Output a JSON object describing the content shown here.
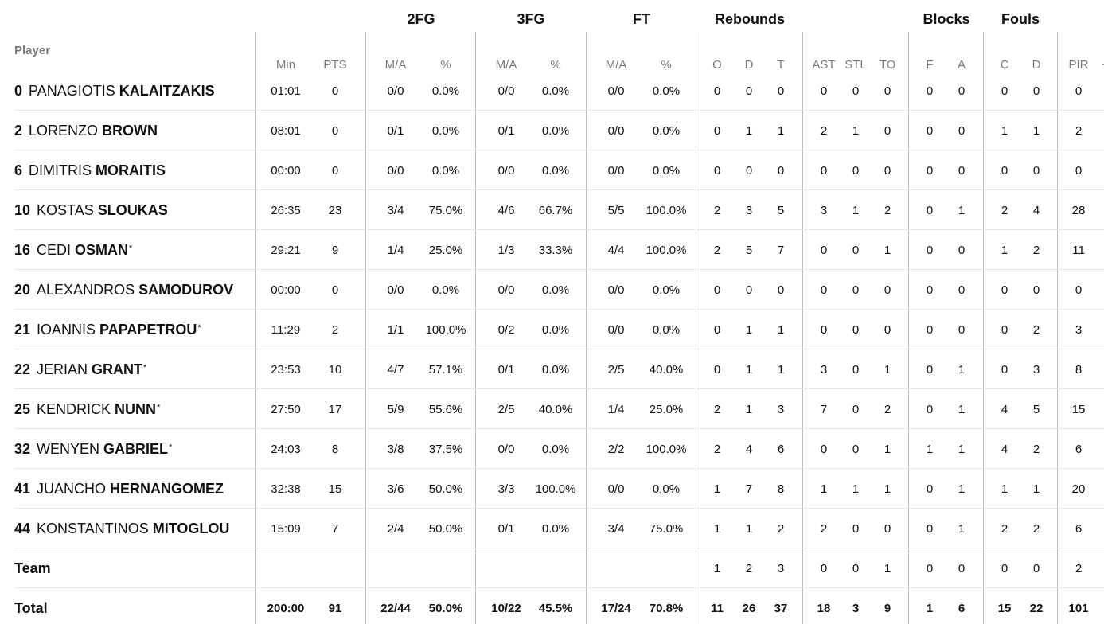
{
  "groups": {
    "fg2": "2FG",
    "fg3": "3FG",
    "ft": "FT",
    "rebounds": "Rebounds",
    "blocks": "Blocks",
    "fouls": "Fouls"
  },
  "columns": {
    "player": "Player",
    "min": "Min",
    "pts": "PTS",
    "fg2_ma": "M/A",
    "fg2_pct": "%",
    "fg3_ma": "M/A",
    "fg3_pct": "%",
    "ft_ma": "M/A",
    "ft_pct": "%",
    "reb_o": "O",
    "reb_d": "D",
    "reb_t": "T",
    "ast": "AST",
    "stl": "STL",
    "to": "TO",
    "blk_f": "F",
    "blk_a": "A",
    "foul_c": "C",
    "foul_d": "D",
    "pir": "PIR"
  },
  "players": [
    {
      "num": "0",
      "first": "PANAGIOTIS",
      "last": "KALAITZAKIS",
      "starter": "",
      "min": "01:01",
      "pts": "0",
      "fg2_ma": "0/0",
      "fg2_pct": "0.0%",
      "fg3_ma": "0/0",
      "fg3_pct": "0.0%",
      "ft_ma": "0/0",
      "ft_pct": "0.0%",
      "reb_o": "0",
      "reb_d": "0",
      "reb_t": "0",
      "ast": "0",
      "stl": "0",
      "to": "0",
      "blk_f": "0",
      "blk_a": "0",
      "foul_c": "0",
      "foul_d": "0",
      "pir": "0"
    },
    {
      "num": "2",
      "first": "LORENZO",
      "last": "BROWN",
      "starter": "",
      "min": "08:01",
      "pts": "0",
      "fg2_ma": "0/1",
      "fg2_pct": "0.0%",
      "fg3_ma": "0/1",
      "fg3_pct": "0.0%",
      "ft_ma": "0/0",
      "ft_pct": "0.0%",
      "reb_o": "0",
      "reb_d": "1",
      "reb_t": "1",
      "ast": "2",
      "stl": "1",
      "to": "0",
      "blk_f": "0",
      "blk_a": "0",
      "foul_c": "1",
      "foul_d": "1",
      "pir": "2"
    },
    {
      "num": "6",
      "first": "DIMITRIS",
      "last": "MORAITIS",
      "starter": "",
      "min": "00:00",
      "pts": "0",
      "fg2_ma": "0/0",
      "fg2_pct": "0.0%",
      "fg3_ma": "0/0",
      "fg3_pct": "0.0%",
      "ft_ma": "0/0",
      "ft_pct": "0.0%",
      "reb_o": "0",
      "reb_d": "0",
      "reb_t": "0",
      "ast": "0",
      "stl": "0",
      "to": "0",
      "blk_f": "0",
      "blk_a": "0",
      "foul_c": "0",
      "foul_d": "0",
      "pir": "0"
    },
    {
      "num": "10",
      "first": "KOSTAS",
      "last": "SLOUKAS",
      "starter": "",
      "min": "26:35",
      "pts": "23",
      "fg2_ma": "3/4",
      "fg2_pct": "75.0%",
      "fg3_ma": "4/6",
      "fg3_pct": "66.7%",
      "ft_ma": "5/5",
      "ft_pct": "100.0%",
      "reb_o": "2",
      "reb_d": "3",
      "reb_t": "5",
      "ast": "3",
      "stl": "1",
      "to": "2",
      "blk_f": "0",
      "blk_a": "1",
      "foul_c": "2",
      "foul_d": "4",
      "pir": "28"
    },
    {
      "num": "16",
      "first": "CEDI",
      "last": "OSMAN",
      "starter": "*",
      "min": "29:21",
      "pts": "9",
      "fg2_ma": "1/4",
      "fg2_pct": "25.0%",
      "fg3_ma": "1/3",
      "fg3_pct": "33.3%",
      "ft_ma": "4/4",
      "ft_pct": "100.0%",
      "reb_o": "2",
      "reb_d": "5",
      "reb_t": "7",
      "ast": "0",
      "stl": "0",
      "to": "1",
      "blk_f": "0",
      "blk_a": "0",
      "foul_c": "1",
      "foul_d": "2",
      "pir": "11"
    },
    {
      "num": "20",
      "first": "ALEXANDROS",
      "last": "SAMODUROV",
      "starter": "",
      "min": "00:00",
      "pts": "0",
      "fg2_ma": "0/0",
      "fg2_pct": "0.0%",
      "fg3_ma": "0/0",
      "fg3_pct": "0.0%",
      "ft_ma": "0/0",
      "ft_pct": "0.0%",
      "reb_o": "0",
      "reb_d": "0",
      "reb_t": "0",
      "ast": "0",
      "stl": "0",
      "to": "0",
      "blk_f": "0",
      "blk_a": "0",
      "foul_c": "0",
      "foul_d": "0",
      "pir": "0"
    },
    {
      "num": "21",
      "first": "IOANNIS",
      "last": "PAPAPETROU",
      "starter": "*",
      "min": "11:29",
      "pts": "2",
      "fg2_ma": "1/1",
      "fg2_pct": "100.0%",
      "fg3_ma": "0/2",
      "fg3_pct": "0.0%",
      "ft_ma": "0/0",
      "ft_pct": "0.0%",
      "reb_o": "0",
      "reb_d": "1",
      "reb_t": "1",
      "ast": "0",
      "stl": "0",
      "to": "0",
      "blk_f": "0",
      "blk_a": "0",
      "foul_c": "0",
      "foul_d": "2",
      "pir": "3"
    },
    {
      "num": "22",
      "first": "JERIAN",
      "last": "GRANT",
      "starter": "*",
      "min": "23:53",
      "pts": "10",
      "fg2_ma": "4/7",
      "fg2_pct": "57.1%",
      "fg3_ma": "0/1",
      "fg3_pct": "0.0%",
      "ft_ma": "2/5",
      "ft_pct": "40.0%",
      "reb_o": "0",
      "reb_d": "1",
      "reb_t": "1",
      "ast": "3",
      "stl": "0",
      "to": "1",
      "blk_f": "0",
      "blk_a": "1",
      "foul_c": "0",
      "foul_d": "3",
      "pir": "8"
    },
    {
      "num": "25",
      "first": "KENDRICK",
      "last": "NUNN",
      "starter": "*",
      "min": "27:50",
      "pts": "17",
      "fg2_ma": "5/9",
      "fg2_pct": "55.6%",
      "fg3_ma": "2/5",
      "fg3_pct": "40.0%",
      "ft_ma": "1/4",
      "ft_pct": "25.0%",
      "reb_o": "2",
      "reb_d": "1",
      "reb_t": "3",
      "ast": "7",
      "stl": "0",
      "to": "2",
      "blk_f": "0",
      "blk_a": "1",
      "foul_c": "4",
      "foul_d": "5",
      "pir": "15"
    },
    {
      "num": "32",
      "first": "WENYEN",
      "last": "GABRIEL",
      "starter": "*",
      "min": "24:03",
      "pts": "8",
      "fg2_ma": "3/8",
      "fg2_pct": "37.5%",
      "fg3_ma": "0/0",
      "fg3_pct": "0.0%",
      "ft_ma": "2/2",
      "ft_pct": "100.0%",
      "reb_o": "2",
      "reb_d": "4",
      "reb_t": "6",
      "ast": "0",
      "stl": "0",
      "to": "1",
      "blk_f": "1",
      "blk_a": "1",
      "foul_c": "4",
      "foul_d": "2",
      "pir": "6"
    },
    {
      "num": "41",
      "first": "JUANCHO",
      "last": "HERNANGOMEZ",
      "starter": "",
      "min": "32:38",
      "pts": "15",
      "fg2_ma": "3/6",
      "fg2_pct": "50.0%",
      "fg3_ma": "3/3",
      "fg3_pct": "100.0%",
      "ft_ma": "0/0",
      "ft_pct": "0.0%",
      "reb_o": "1",
      "reb_d": "7",
      "reb_t": "8",
      "ast": "1",
      "stl": "1",
      "to": "1",
      "blk_f": "0",
      "blk_a": "1",
      "foul_c": "1",
      "foul_d": "1",
      "pir": "20"
    },
    {
      "num": "44",
      "first": "KONSTANTINOS",
      "last": "MITOGLOU",
      "starter": "",
      "min": "15:09",
      "pts": "7",
      "fg2_ma": "2/4",
      "fg2_pct": "50.0%",
      "fg3_ma": "0/1",
      "fg3_pct": "0.0%",
      "ft_ma": "3/4",
      "ft_pct": "75.0%",
      "reb_o": "1",
      "reb_d": "1",
      "reb_t": "2",
      "ast": "2",
      "stl": "0",
      "to": "0",
      "blk_f": "0",
      "blk_a": "1",
      "foul_c": "2",
      "foul_d": "2",
      "pir": "6"
    }
  ],
  "team": {
    "label": "Team",
    "reb_o": "1",
    "reb_d": "2",
    "reb_t": "3",
    "ast": "0",
    "stl": "0",
    "to": "1",
    "blk_f": "0",
    "blk_a": "0",
    "foul_c": "0",
    "foul_d": "0",
    "pir": "2"
  },
  "total": {
    "label": "Total",
    "min": "200:00",
    "pts": "91",
    "fg2_ma": "22/44",
    "fg2_pct": "50.0%",
    "fg3_ma": "10/22",
    "fg3_pct": "45.5%",
    "ft_ma": "17/24",
    "ft_pct": "70.8%",
    "reb_o": "11",
    "reb_d": "26",
    "reb_t": "37",
    "ast": "18",
    "stl": "3",
    "to": "9",
    "blk_f": "1",
    "blk_a": "6",
    "foul_c": "15",
    "foul_d": "22",
    "pir": "101"
  }
}
